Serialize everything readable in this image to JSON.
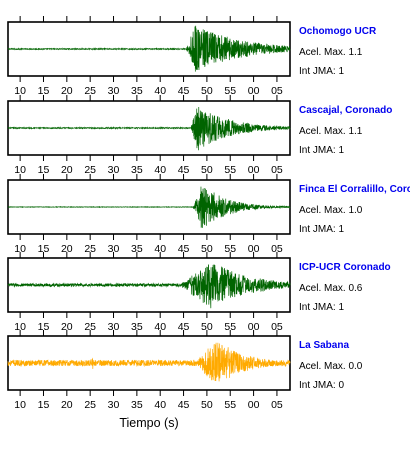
{
  "chart_data": {
    "type": "line",
    "xlabel": "Tiempo (s)",
    "tick_labels": [
      "10",
      "15",
      "20",
      "25",
      "30",
      "35",
      "40",
      "45",
      "50",
      "55",
      "00",
      "05"
    ],
    "name_color": "#0000ee",
    "panels": [
      {
        "station": "Ochomogo UCR",
        "accel": "Acel. Max. 1.1",
        "jma": "Int JMA: 1",
        "color": "#006400",
        "onset": 45.5,
        "peak": 47.5,
        "decay": 10,
        "noise": 0.02,
        "amp": 0.95,
        "precursor": null
      },
      {
        "station": "Cascajal, Coronado",
        "accel": "Acel. Max. 1.1",
        "jma": "Int JMA: 1",
        "color": "#006400",
        "onset": 46.5,
        "peak": 48.0,
        "decay": 7,
        "noise": 0.02,
        "amp": 0.9,
        "precursor": null
      },
      {
        "station": "Finca El Corralillo, Coronado",
        "accel": "Acel. Max. 1.0",
        "jma": "Int JMA: 1",
        "color": "#006400",
        "onset": 47.0,
        "peak": 49.0,
        "decay": 5,
        "noise": 0.01,
        "amp": 0.95,
        "precursor": null
      },
      {
        "station": "ICP-UCR Coronado",
        "accel": "Acel. Max. 0.6",
        "jma": "Int JMA: 1",
        "color": "#006400",
        "onset": 44.0,
        "peak": 51.0,
        "decay": 8,
        "noise": 0.06,
        "amp": 0.95,
        "precursor": null
      },
      {
        "station": "La Sabana",
        "accel": "Acel. Max. 0.0",
        "jma": "Int JMA: 0",
        "color": "#ffaa00",
        "onset": 47.5,
        "peak": 52.0,
        "decay": 6,
        "noise": 0.12,
        "amp": 0.95,
        "precursor": 25.5
      }
    ]
  }
}
